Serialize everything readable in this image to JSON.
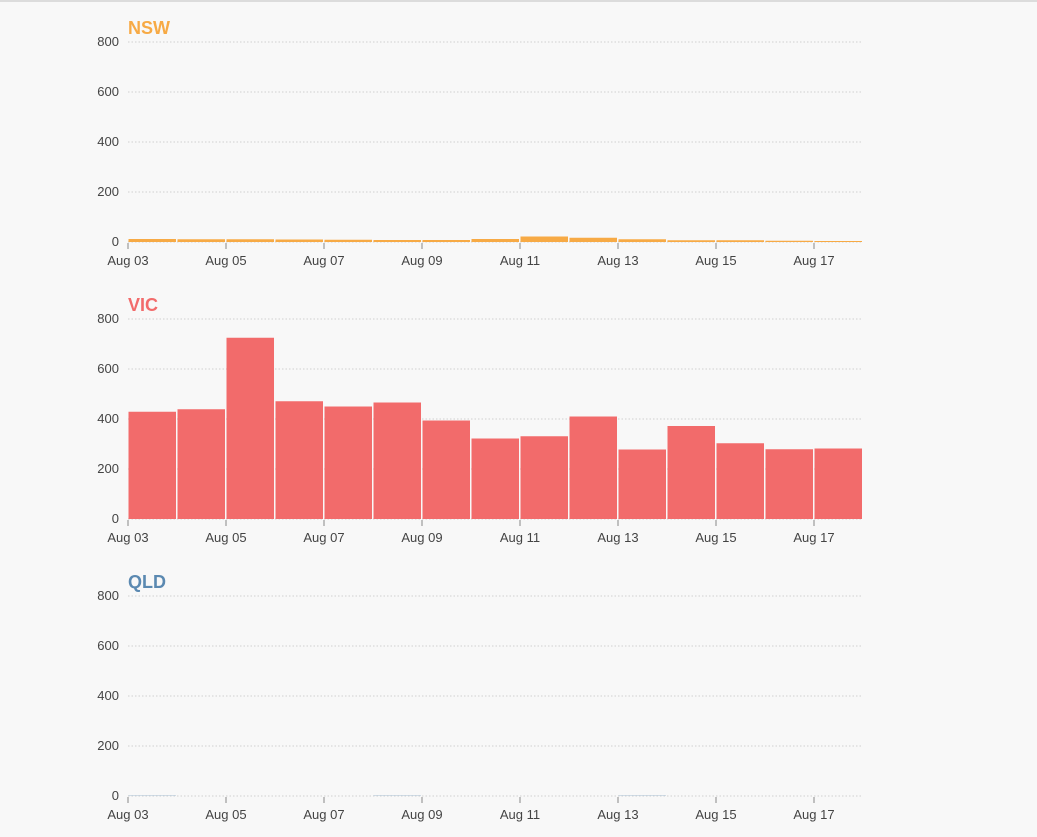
{
  "chart_data": [
    {
      "type": "bar",
      "title": "NSW",
      "color": "#f7aa45",
      "x_ticks": [
        "Aug 03",
        "Aug 05",
        "Aug 07",
        "Aug 09",
        "Aug 11",
        "Aug 13",
        "Aug 15",
        "Aug 17"
      ],
      "y_ticks": [
        0,
        200,
        400,
        600,
        800
      ],
      "ylim": [
        0,
        800
      ],
      "grid": true,
      "dates": [
        "2020-08-03",
        "2020-08-04",
        "2020-08-05",
        "2020-08-06",
        "2020-08-07",
        "2020-08-08",
        "2020-08-09",
        "2020-08-10",
        "2020-08-11",
        "2020-08-12",
        "2020-08-13",
        "2020-08-14",
        "2020-08-15",
        "2020-08-16",
        "2020-08-17"
      ],
      "values": [
        12,
        11,
        11,
        10,
        9,
        8,
        8,
        12,
        22,
        17,
        11,
        7,
        7,
        5,
        4
      ]
    },
    {
      "type": "bar",
      "title": "VIC",
      "color": "#f26b6b",
      "x_ticks": [
        "Aug 03",
        "Aug 05",
        "Aug 07",
        "Aug 09",
        "Aug 11",
        "Aug 13",
        "Aug 15",
        "Aug 17"
      ],
      "y_ticks": [
        0,
        200,
        400,
        600,
        800
      ],
      "ylim": [
        0,
        800
      ],
      "grid": true,
      "dates": [
        "2020-08-03",
        "2020-08-04",
        "2020-08-05",
        "2020-08-06",
        "2020-08-07",
        "2020-08-08",
        "2020-08-09",
        "2020-08-10",
        "2020-08-11",
        "2020-08-12",
        "2020-08-13",
        "2020-08-14",
        "2020-08-15",
        "2020-08-16",
        "2020-08-17"
      ],
      "values": [
        429,
        439,
        725,
        471,
        450,
        466,
        394,
        322,
        331,
        410,
        278,
        372,
        303,
        279,
        282
      ]
    },
    {
      "type": "bar",
      "title": "QLD",
      "color": "#5b89b1",
      "x_ticks": [
        "Aug 03",
        "Aug 05",
        "Aug 07",
        "Aug 09",
        "Aug 11",
        "Aug 13",
        "Aug 15",
        "Aug 17"
      ],
      "y_ticks": [
        0,
        200,
        400,
        600,
        800
      ],
      "ylim": [
        0,
        800
      ],
      "grid": true,
      "dates": [
        "2020-08-03",
        "2020-08-04",
        "2020-08-05",
        "2020-08-06",
        "2020-08-07",
        "2020-08-08",
        "2020-08-09",
        "2020-08-10",
        "2020-08-11",
        "2020-08-12",
        "2020-08-13",
        "2020-08-14",
        "2020-08-15",
        "2020-08-16",
        "2020-08-17"
      ],
      "values": [
        1,
        0,
        0,
        0,
        0,
        1,
        0,
        0,
        0,
        0,
        1,
        0,
        0,
        0,
        0
      ]
    }
  ]
}
